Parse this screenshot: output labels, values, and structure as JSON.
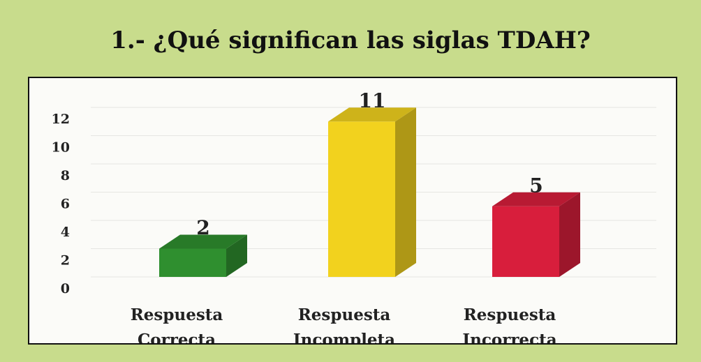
{
  "chart_data": {
    "type": "bar3d",
    "title": "1.- ¿Qué significan las siglas TDAH?",
    "categories": [
      "Respuesta Correcta",
      "Respuesta Incompleta",
      "Respuesta Incorrecta"
    ],
    "values": [
      2,
      11,
      5
    ],
    "colors": [
      "#2f8f2f",
      "#f2d21e",
      "#d81e3c"
    ],
    "ylim": [
      0,
      12
    ],
    "yticks": [
      0,
      2,
      4,
      6,
      8,
      10,
      12
    ],
    "grid": true
  }
}
